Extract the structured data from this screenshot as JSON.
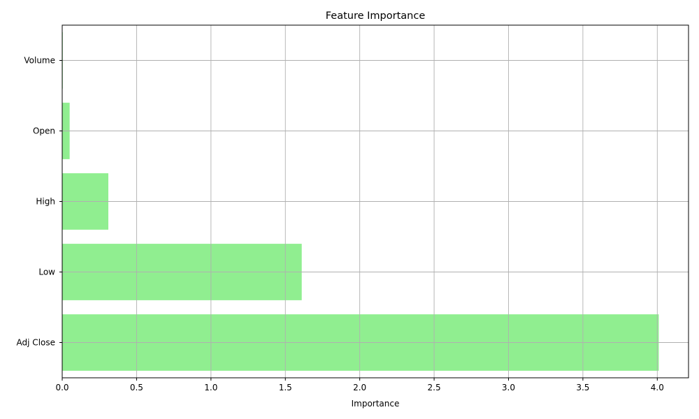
{
  "chart_data": {
    "type": "bar",
    "orientation": "horizontal",
    "title": "Feature Importance",
    "xlabel": "Importance",
    "ylabel": "",
    "categories": [
      "Adj Close",
      "Low",
      "High",
      "Open",
      "Volume"
    ],
    "values": [
      4.01,
      1.61,
      0.31,
      0.05,
      0.003
    ],
    "xlim": [
      0,
      4.21
    ],
    "xticks": [
      "0.0",
      "0.5",
      "1.0",
      "1.5",
      "2.0",
      "2.5",
      "3.0",
      "3.5",
      "4.0"
    ],
    "grid": true,
    "bar_color": "#90ee90",
    "grid_color": "#b0b0b0"
  }
}
